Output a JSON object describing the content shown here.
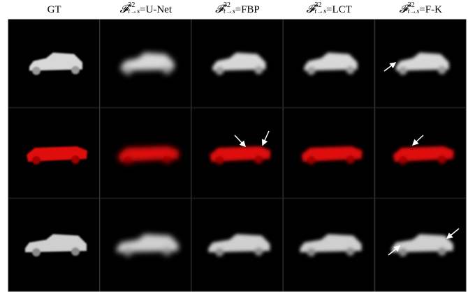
{
  "columns": [
    {
      "label": "GT"
    },
    {
      "symbol": "𝓕",
      "sup": "32",
      "sub": "t→s",
      "method": "=U-Net"
    },
    {
      "symbol": "𝓕",
      "sup": "32",
      "sub": "t→s",
      "method": "=FBP"
    },
    {
      "symbol": "𝓕",
      "sup": "32",
      "sub": "t→s",
      "method": "=LCT"
    },
    {
      "symbol": "𝓕",
      "sup": "32",
      "sub": "t→s",
      "method": "=F-K"
    }
  ]
}
